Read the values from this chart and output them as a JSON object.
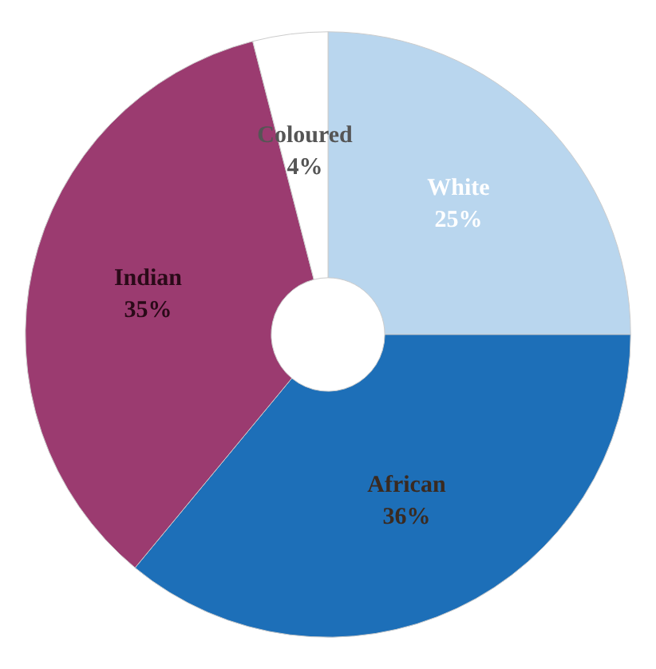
{
  "chart_data": {
    "type": "donut",
    "categories": [
      "White",
      "African",
      "Indian",
      "Coloured"
    ],
    "values": [
      25,
      36,
      35,
      4
    ],
    "value_labels": [
      "25%",
      "36%",
      "35%",
      "4%"
    ],
    "colors": [
      "#b9d6ee",
      "#1d6fb8",
      "#9b3b70",
      "#ffffff"
    ],
    "legend": false
  }
}
